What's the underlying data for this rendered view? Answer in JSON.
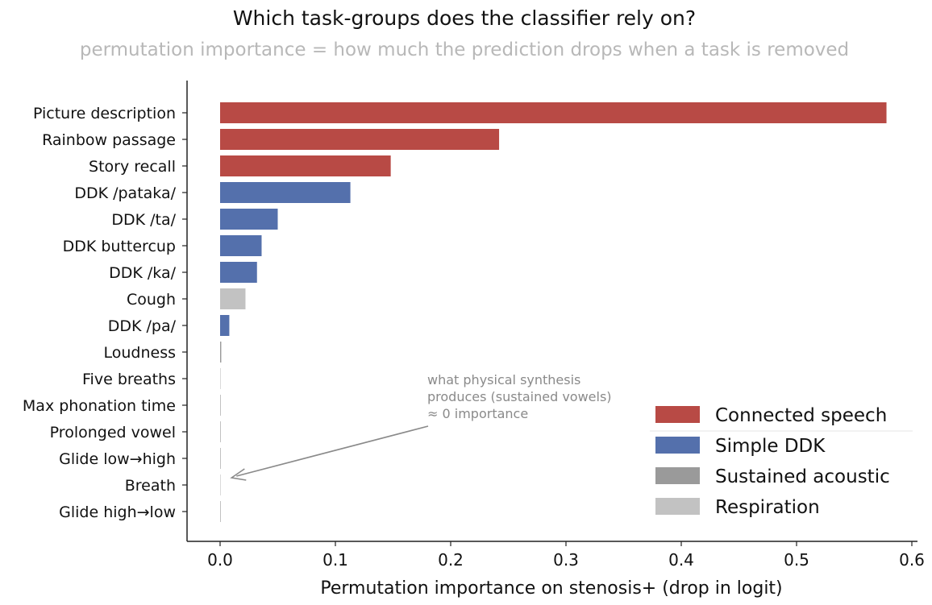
{
  "chart_data": {
    "type": "bar",
    "orientation": "horizontal",
    "title": "Which task-groups does the classifier rely on?",
    "subtitle": "permutation importance = how much the prediction drops when a task is removed",
    "xlabel": "Permutation importance on stenosis+ (drop in logit)",
    "ylabel": "",
    "xlim": [
      -0.03,
      0.605
    ],
    "xticks": [
      "0.0",
      "0.1",
      "0.2",
      "0.3",
      "0.4",
      "0.5",
      "0.6"
    ],
    "xtick_values": [
      0.0,
      0.1,
      0.2,
      0.3,
      0.4,
      0.5,
      0.6
    ],
    "grid": false,
    "legend_position": "bottom-right",
    "groups": [
      {
        "name": "Connected speech",
        "color": "#b84a45"
      },
      {
        "name": "Simple DDK",
        "color": "#5470ac"
      },
      {
        "name": "Sustained acoustic",
        "color": "#9a9a9a"
      },
      {
        "name": "Respiration",
        "color": "#c2c2c2"
      }
    ],
    "bars": [
      {
        "label": "Picture description",
        "value": 0.578,
        "group": "Connected speech"
      },
      {
        "label": "Rainbow passage",
        "value": 0.242,
        "group": "Connected speech"
      },
      {
        "label": "Story recall",
        "value": 0.148,
        "group": "Connected speech"
      },
      {
        "label": "DDK /pataka/",
        "value": 0.113,
        "group": "Simple DDK"
      },
      {
        "label": "DDK /ta/",
        "value": 0.05,
        "group": "Simple DDK"
      },
      {
        "label": "DDK buttercup",
        "value": 0.036,
        "group": "Simple DDK"
      },
      {
        "label": "DDK /ka/",
        "value": 0.032,
        "group": "Simple DDK"
      },
      {
        "label": "Cough",
        "value": 0.022,
        "group": "Respiration"
      },
      {
        "label": "DDK /pa/",
        "value": 0.008,
        "group": "Simple DDK"
      },
      {
        "label": "Loudness",
        "value": 0.001,
        "group": "Sustained acoustic"
      },
      {
        "label": "Five breaths",
        "value": 0.0003,
        "group": "Respiration"
      },
      {
        "label": "Max phonation time",
        "value": 0.0003,
        "group": "Sustained acoustic"
      },
      {
        "label": "Prolonged vowel",
        "value": 0.0003,
        "group": "Sustained acoustic"
      },
      {
        "label": "Glide low→high",
        "value": 0.0003,
        "group": "Sustained acoustic"
      },
      {
        "label": "Breath",
        "value": 0.0002,
        "group": "Respiration"
      },
      {
        "label": "Glide high→low",
        "value": 0.0002,
        "group": "Sustained acoustic"
      }
    ],
    "annotation": {
      "lines": [
        "what physical synthesis",
        "produces (sustained vowels)",
        "≈ 0 importance"
      ],
      "points_to_value": 0.01,
      "points_to_label": "Breath"
    }
  }
}
